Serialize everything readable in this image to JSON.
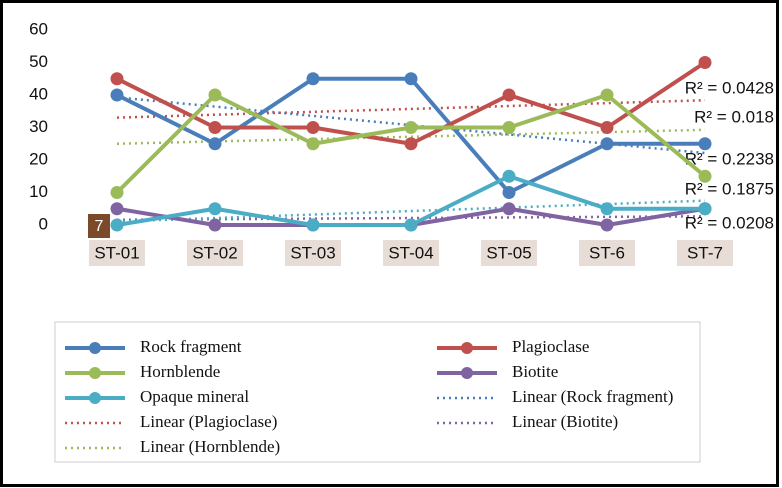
{
  "chart_data": {
    "type": "line",
    "categories": [
      "ST-01",
      "ST-02",
      "ST-03",
      "ST-04",
      "ST-05",
      "ST-6",
      "ST-7"
    ],
    "ylim": [
      0,
      60
    ],
    "yticks": [
      0,
      10,
      20,
      30,
      40,
      50,
      60
    ],
    "series": [
      {
        "name": "Rock fragment",
        "color": "#4a7ebb",
        "values": [
          40,
          25,
          45,
          45,
          10,
          25,
          25
        ]
      },
      {
        "name": "Plagioclase",
        "color": "#c0504d",
        "values": [
          45,
          30,
          30,
          25,
          40,
          30,
          50
        ]
      },
      {
        "name": "Hornblende",
        "color": "#9bbb59",
        "values": [
          10,
          40,
          25,
          30,
          30,
          40,
          15
        ]
      },
      {
        "name": "Biotite",
        "color": "#8064a2",
        "values": [
          5,
          0,
          0,
          0,
          5,
          0,
          5
        ]
      },
      {
        "name": "Opaque mineral",
        "color": "#4bacc6",
        "values": [
          0,
          5,
          0,
          0,
          15,
          5,
          5
        ]
      }
    ],
    "trendlines": [
      {
        "name": "Linear (Rock fragment)",
        "series": 0,
        "r_squared": 0.2238,
        "label": "R² = 0.2238"
      },
      {
        "name": "Linear (Plagioclase)",
        "series": 1,
        "r_squared": 0.0428,
        "label": "R² = 0.0428"
      },
      {
        "name": "Linear (Biotite)",
        "series": 3,
        "r_squared": 0.0208,
        "label": "R² = 0.0208"
      },
      {
        "name": "Linear (Hornblende)",
        "series": 2,
        "r_squared": 0.018,
        "label": "R² = 0.018"
      },
      {
        "series": 4,
        "r_squared": 0.1875,
        "label": "R² = 0.1875"
      }
    ],
    "badge": "7"
  }
}
